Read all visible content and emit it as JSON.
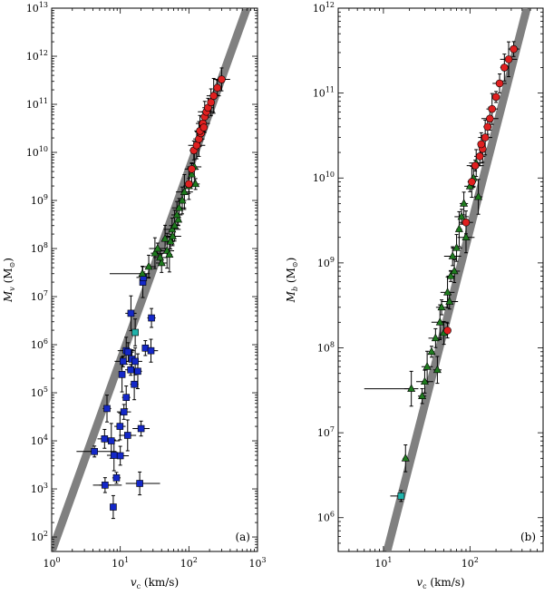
{
  "chart_data": [
    {
      "type": "scatter",
      "panel_label": "(a)",
      "xlabel_var": "v",
      "xlabel_sub": "c",
      "xlabel_unit": "(km/s)",
      "ylabel_var": "M",
      "ylabel_sub": "v",
      "ylabel_unit": "(M",
      "ylabel_unit_close": ")",
      "x_scale": "log",
      "y_scale": "log",
      "xlim": [
        1,
        1000
      ],
      "ylim": [
        50,
        10000000000000
      ],
      "x_ticks": [
        {
          "value": 1,
          "base": "10",
          "exp": "0"
        },
        {
          "value": 10,
          "base": "10",
          "exp": "1"
        },
        {
          "value": 100,
          "base": "10",
          "exp": "2"
        },
        {
          "value": 1000,
          "base": "10",
          "exp": "3"
        }
      ],
      "y_ticks": [
        {
          "value": 100,
          "base": "10",
          "exp": "2"
        },
        {
          "value": 1000,
          "base": "10",
          "exp": "3"
        },
        {
          "value": 10000,
          "base": "10",
          "exp": "4"
        },
        {
          "value": 100000,
          "base": "10",
          "exp": "5"
        },
        {
          "value": 1000000,
          "base": "10",
          "exp": "6"
        },
        {
          "value": 10000000,
          "base": "10",
          "exp": "7"
        },
        {
          "value": 100000000,
          "base": "10",
          "exp": "8"
        },
        {
          "value": 1000000000,
          "base": "10",
          "exp": "9"
        },
        {
          "value": 10000000000,
          "base": "10",
          "exp": "10"
        },
        {
          "value": 100000000000,
          "base": "10",
          "exp": "11"
        },
        {
          "value": 1000000000000,
          "base": "10",
          "exp": "12"
        },
        {
          "value": 10000000000000,
          "base": "10",
          "exp": "13"
        }
      ],
      "fit_line": {
        "color": "#808080",
        "x1": 1.0,
        "y1": 50,
        "x2": 700,
        "y2": 10000000000000
      },
      "series": [
        {
          "marker": "square",
          "color": "#1428c8",
          "points": [
            [
              4.2,
              6000
            ],
            [
              5.9,
              11000
            ],
            [
              6.4,
              47000
            ],
            [
              7.4,
              10000
            ],
            [
              6.0,
              1200
            ],
            [
              7.9,
              420
            ],
            [
              8.1,
              5000
            ],
            [
              8.8,
              1700
            ],
            [
              10.0,
              4900
            ],
            [
              9.9,
              20000
            ],
            [
              10.6,
              240000
            ],
            [
              11.3,
              40000
            ],
            [
              12.2,
              80000
            ],
            [
              12.8,
              13000
            ],
            [
              14.2,
              300000
            ],
            [
              14.8,
              500000
            ],
            [
              16.5,
              450000
            ],
            [
              18.0,
              280000
            ],
            [
              20.1,
              18000
            ],
            [
              19.2,
              1300
            ],
            [
              21.3,
              20000000
            ],
            [
              21.8,
              25000000
            ],
            [
              28.5,
              3600000
            ],
            [
              12.2,
              750000
            ],
            [
              14.3,
              4500000
            ],
            [
              23.2,
              850000
            ],
            [
              28.0,
              750000
            ],
            [
              16.0,
              150000
            ],
            [
              11.0,
              450000
            ],
            [
              13.0,
              700000
            ]
          ]
        },
        {
          "marker": "square",
          "color": "#20b2aa",
          "points": [
            [
              16.5,
              1800000
            ]
          ]
        },
        {
          "marker": "triangle",
          "color": "#1e7b1e",
          "points": [
            [
              21.0,
              30000000
            ],
            [
              26.0,
              42000000
            ],
            [
              32.0,
              80000000
            ],
            [
              35.0,
              100000000
            ],
            [
              40.0,
              50000000
            ],
            [
              45.0,
              160000000
            ],
            [
              48.0,
              90000000
            ],
            [
              54.0,
              140000000
            ],
            [
              57.0,
              250000000
            ],
            [
              62.0,
              300000000
            ],
            [
              70.0,
              400000000
            ],
            [
              72.0,
              700000000
            ],
            [
              80.0,
              1000000000
            ],
            [
              86.0,
              1500000000
            ],
            [
              100.0,
              2000000000
            ],
            [
              110.0,
              3500000000
            ],
            [
              120.0,
              5000000000
            ],
            [
              125.0,
              2200000000
            ],
            [
              58.0,
              180000000
            ],
            [
              67.0,
              500000000
            ],
            [
              52.0,
              75000000
            ],
            [
              38.0,
              65000000
            ]
          ]
        },
        {
          "marker": "circle",
          "color": "#e02020",
          "points": [
            [
              100.0,
              2200000000
            ],
            [
              110.0,
              4500000000
            ],
            [
              118.0,
              11000000000
            ],
            [
              130.0,
              14000000000
            ],
            [
              140.0,
              19000000000
            ],
            [
              150.0,
              25000000000
            ],
            [
              160.0,
              40000000000
            ],
            [
              170.0,
              55000000000
            ],
            [
              180.0,
              70000000000
            ],
            [
              190.0,
              85000000000
            ],
            [
              210.0,
              110000000000
            ],
            [
              230.0,
              150000000000
            ],
            [
              260.0,
              220000000000
            ],
            [
              300.0,
              330000000000
            ],
            [
              145.0,
              28000000000
            ],
            [
              165.0,
              33000000000
            ]
          ]
        }
      ]
    },
    {
      "type": "scatter",
      "panel_label": "(b)",
      "xlabel_var": "v",
      "xlabel_sub": "c",
      "xlabel_unit": "(km/s)",
      "ylabel_var": "M",
      "ylabel_sub": "b",
      "ylabel_unit": "(M",
      "ylabel_unit_close": ")",
      "x_scale": "log",
      "y_scale": "log",
      "xlim": [
        3,
        700
      ],
      "ylim": [
        400000,
        1000000000000
      ],
      "x_ticks": [
        {
          "value": 10,
          "base": "10",
          "exp": "1"
        },
        {
          "value": 100,
          "base": "10",
          "exp": "2"
        }
      ],
      "y_ticks": [
        {
          "value": 1000000,
          "base": "10",
          "exp": "6"
        },
        {
          "value": 10000000,
          "base": "10",
          "exp": "7"
        },
        {
          "value": 100000000,
          "base": "10",
          "exp": "8"
        },
        {
          "value": 1000000000,
          "base": "10",
          "exp": "9"
        },
        {
          "value": 10000000000,
          "base": "10",
          "exp": "10"
        },
        {
          "value": 100000000000,
          "base": "10",
          "exp": "11"
        },
        {
          "value": 1000000000000,
          "base": "10",
          "exp": "12"
        }
      ],
      "fit_line": {
        "color": "#808080",
        "x1": 11.0,
        "y1": 400000,
        "x2": 455,
        "y2": 1000000000000
      },
      "series": [
        {
          "marker": "square",
          "color": "#20b2aa",
          "points": [
            [
              16.0,
              1800000
            ]
          ]
        },
        {
          "marker": "triangle",
          "color": "#1e7b1e",
          "points": [
            [
              18.0,
              5000000
            ],
            [
              21.0,
              33000000
            ],
            [
              28.0,
              27000000
            ],
            [
              30.0,
              40000000
            ],
            [
              32.0,
              60000000
            ],
            [
              36.0,
              90000000
            ],
            [
              40.0,
              130000000
            ],
            [
              42.0,
              55000000
            ],
            [
              45.0,
              200000000
            ],
            [
              47.0,
              300000000
            ],
            [
              50.0,
              150000000
            ],
            [
              55.0,
              450000000
            ],
            [
              60.0,
              700000000
            ],
            [
              63.0,
              1200000000
            ],
            [
              70.0,
              1500000000
            ],
            [
              75.0,
              2500000000
            ],
            [
              80.0,
              3500000000
            ],
            [
              85.0,
              5000000000
            ],
            [
              90.0,
              2000000000
            ],
            [
              100.0,
              8000000000
            ],
            [
              110.0,
              10000000000
            ],
            [
              118.0,
              15000000000
            ],
            [
              125.0,
              6000000000
            ],
            [
              58.0,
              350000000
            ],
            [
              66.0,
              800000000
            ]
          ]
        },
        {
          "marker": "circle",
          "color": "#e02020",
          "points": [
            [
              55.0,
              160000000
            ],
            [
              90.0,
              3000000000
            ],
            [
              105.0,
              9000000000
            ],
            [
              115.0,
              14000000000
            ],
            [
              130.0,
              18000000000
            ],
            [
              140.0,
              22000000000
            ],
            [
              150.0,
              30000000000
            ],
            [
              160.0,
              40000000000
            ],
            [
              170.0,
              50000000000
            ],
            [
              180.0,
              65000000000
            ],
            [
              200.0,
              90000000000
            ],
            [
              220.0,
              130000000000
            ],
            [
              250.0,
              200000000000
            ],
            [
              280.0,
              250000000000
            ],
            [
              320.0,
              330000000000
            ],
            [
              135.0,
              25000000000
            ]
          ]
        }
      ]
    }
  ]
}
